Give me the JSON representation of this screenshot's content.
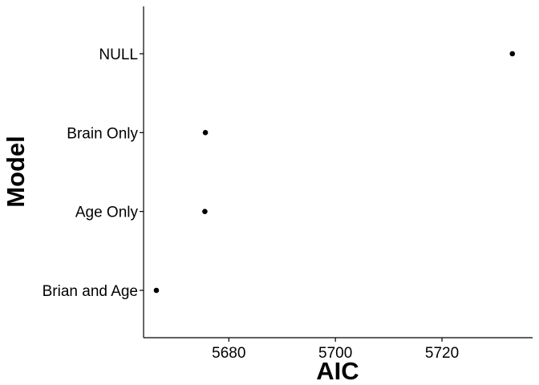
{
  "chart_data": {
    "type": "scatter",
    "xlabel": "AIC",
    "ylabel": "Model",
    "categories": [
      "Brian and Age",
      "Age Only",
      "Brain Only",
      "NULL"
    ],
    "values": [
      5666.4,
      5675.5,
      5675.6,
      5733.2
    ],
    "x_ticks": [
      5680,
      5700,
      5720
    ],
    "xlim": [
      5664,
      5737
    ],
    "grid": false,
    "legend": "none",
    "point_color": "#000000"
  }
}
